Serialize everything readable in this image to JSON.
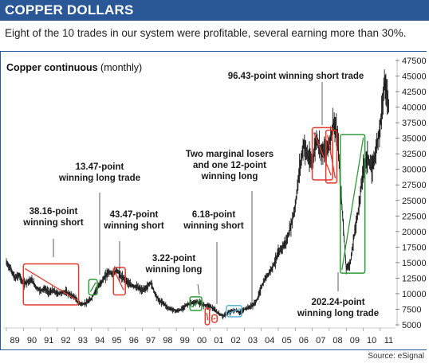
{
  "header": {
    "title": "COPPER DOLLARS"
  },
  "subtitle": "Eight of the 10 trades in our system were profitable, several earning more than 30%.",
  "source": "Source: eSignal",
  "colors": {
    "header_bg": "#2a5896",
    "price_bar": "#1a1a1a",
    "loss_box": "#e03a2a",
    "win_box": "#2f9a3a",
    "neutral_box": "#5ab4d6"
  },
  "chart_data": {
    "type": "line",
    "title": "Copper continuous",
    "title_suffix": "(monthly)",
    "x_tick_labels": [
      "89",
      "90",
      "91",
      "92",
      "93",
      "94",
      "95",
      "96",
      "97",
      "98",
      "99",
      "00",
      "01",
      "02",
      "03",
      "04",
      "05",
      "06",
      "07",
      "08",
      "09",
      "10",
      "11"
    ],
    "xlim": [
      1989.0,
      2011.9
    ],
    "ylim": [
      5000,
      47500
    ],
    "y_ticks": [
      5000,
      7500,
      10000,
      12500,
      15000,
      17500,
      20000,
      22500,
      25000,
      27500,
      30000,
      32500,
      35000,
      37500,
      40000,
      42500,
      45000,
      47500
    ],
    "y_tick_labels": [
      "5000",
      "7500",
      "10000",
      "12500",
      "15000",
      "17500",
      "20000",
      "22500",
      "25000",
      "27500",
      "30000",
      "32500",
      "35000",
      "37500",
      "40000",
      "42500",
      "45000",
      "47500"
    ],
    "series": [
      {
        "x": [
          1989.0,
          1989.25,
          1989.5,
          1989.75,
          1990.0,
          1990.25,
          1990.5,
          1990.75,
          1991.0,
          1991.25,
          1991.5,
          1991.75,
          1992.0,
          1992.25,
          1992.5,
          1992.75,
          1993.0,
          1993.25,
          1993.5,
          1993.75,
          1994.0,
          1994.25,
          1994.5,
          1994.75,
          1995.0,
          1995.25,
          1995.5,
          1995.75,
          1996.0,
          1996.25,
          1996.5,
          1996.75,
          1997.0,
          1997.25,
          1997.5,
          1997.75,
          1998.0,
          1998.25,
          1998.5,
          1998.75,
          1999.0,
          1999.25,
          1999.5,
          1999.75,
          2000.0,
          2000.25,
          2000.5,
          2000.75,
          2001.0,
          2001.25,
          2001.5,
          2001.75,
          2002.0,
          2002.25,
          2002.5,
          2002.75,
          2003.0,
          2003.25,
          2003.5,
          2003.75,
          2004.0,
          2004.25,
          2004.5,
          2004.75,
          2005.0,
          2005.25,
          2005.5,
          2005.75,
          2006.0,
          2006.25,
          2006.5,
          2006.75,
          2007.0,
          2007.25,
          2007.5,
          2007.75,
          2008.0,
          2008.25,
          2008.5,
          2008.75,
          2009.0,
          2009.25,
          2009.5,
          2009.75,
          2010.0,
          2010.25,
          2010.5,
          2010.75,
          2011.0,
          2011.25,
          2011.5
        ],
        "y": [
          15000,
          14000,
          12500,
          13000,
          11500,
          12000,
          12200,
          11000,
          10500,
          10800,
          10200,
          10500,
          10000,
          10200,
          10300,
          9800,
          9500,
          8500,
          8300,
          8600,
          9200,
          10500,
          11500,
          12500,
          13500,
          13200,
          13800,
          12700,
          12300,
          11500,
          11200,
          11000,
          10500,
          11000,
          11800,
          10000,
          8800,
          8500,
          7700,
          7500,
          7200,
          7400,
          8000,
          8400,
          8500,
          8700,
          8300,
          8100,
          8000,
          7400,
          6800,
          6400,
          6800,
          7200,
          7300,
          6900,
          7500,
          7800,
          8100,
          9000,
          11000,
          12500,
          13500,
          14800,
          16500,
          17500,
          18500,
          21000,
          24000,
          30000,
          34000,
          32000,
          31000,
          35000,
          33000,
          33000,
          34000,
          37500,
          35000,
          24000,
          14000,
          15000,
          20000,
          24000,
          30000,
          32000,
          30000,
          33000,
          37000,
          44000,
          40500
        ]
      }
    ],
    "annotations": [
      {
        "text": [
          "38.16-point",
          "winning short"
        ],
        "result": "win"
      },
      {
        "text": [
          "13.47-point",
          "winning long trade"
        ],
        "result": "win"
      },
      {
        "text": [
          "43.47-point",
          "winning short"
        ],
        "result": "win"
      },
      {
        "text": [
          "3.22-point",
          "winning long"
        ],
        "result": "win"
      },
      {
        "text": [
          "6.18-point",
          "winning short"
        ],
        "result": "win"
      },
      {
        "text": [
          "Two marginal losers",
          "and one 12-point",
          "winning long"
        ],
        "result": "mixed"
      },
      {
        "text": [
          "96.43-point winning short trade"
        ],
        "result": "win"
      },
      {
        "text": [
          "202.24-point",
          "winning long trade"
        ],
        "result": "win"
      }
    ],
    "trades": [
      {
        "start": 1990.0,
        "end": 1993.25,
        "low": 8200,
        "high": 14800,
        "side": "short",
        "result": "win"
      },
      {
        "start": 1993.85,
        "end": 1994.35,
        "low": 9800,
        "high": 12300,
        "side": "long",
        "result": "win"
      },
      {
        "start": 1995.3,
        "end": 1996.0,
        "low": 9800,
        "high": 14200,
        "side": "short",
        "result": "win"
      },
      {
        "start": 1999.8,
        "end": 2000.5,
        "low": 7300,
        "high": 9500,
        "side": "long",
        "result": "win"
      },
      {
        "start": 2000.7,
        "end": 2000.95,
        "low": 5000,
        "high": 7700,
        "side": "short",
        "result": "win"
      },
      {
        "start": 2001.1,
        "end": 2001.4,
        "low": 5400,
        "high": 6600,
        "side": "long",
        "result": "loss"
      },
      {
        "start": 2001.95,
        "end": 2002.85,
        "low": 6300,
        "high": 8100,
        "side": "long",
        "result": "neutral"
      },
      {
        "start": 2007.0,
        "end": 2008.2,
        "low": 28300,
        "high": 36700,
        "side": "short",
        "result": "loss"
      },
      {
        "start": 2007.8,
        "end": 2008.45,
        "low": 27800,
        "high": 36300,
        "side": "short",
        "result": "loss"
      },
      {
        "start": 2008.65,
        "end": 2010.1,
        "low": 13300,
        "high": 35600,
        "side": "long",
        "result": "win"
      }
    ]
  }
}
